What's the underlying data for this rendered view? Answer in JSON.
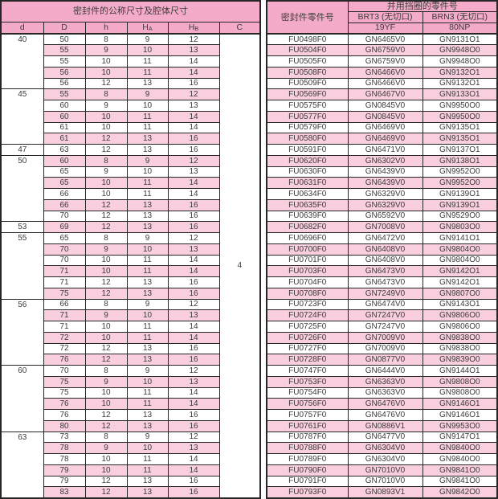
{
  "dim_table": {
    "title": "密封件的公称尺寸及腔体尺寸",
    "col_d": "d",
    "col_D": "D",
    "col_h": "h",
    "col_HA_main": "H",
    "col_HA_sub": "A",
    "col_HB_main": "H",
    "col_HB_sub": "B",
    "col_C": "C",
    "c_value": "4"
  },
  "part_table": {
    "seal_col": "密封件零件号",
    "backup_title": "并用挡圈的零件号",
    "brt3_label": "BRT3 (无切口)",
    "brt3_code": "19YF",
    "brn3_label": "BRN3 (无切口)",
    "brn3_code": "80NP"
  },
  "colors": {
    "header_pink": "#f3abc9",
    "stripe_pink": "#f9cede",
    "border_dark": "#262626",
    "text": "#3c3c3c"
  },
  "groups": [
    {
      "d": "40",
      "rows": [
        {
          "D": "50",
          "h": "8",
          "HA": "9",
          "HB": "12",
          "seal": "FU0498F0",
          "brt3": "GN6465V0",
          "brn3": "GN9131O1"
        },
        {
          "D": "55",
          "h": "9",
          "HA": "10",
          "HB": "13",
          "seal": "FU0504F0",
          "brt3": "GN6759V0",
          "brn3": "GN9948O0"
        },
        {
          "D": "55",
          "h": "10",
          "HA": "11",
          "HB": "14",
          "seal": "FU0505F0",
          "brt3": "GN6759V0",
          "brn3": "GN9948O0"
        },
        {
          "D": "56",
          "h": "10",
          "HA": "11",
          "HB": "14",
          "seal": "FU0508F0",
          "brt3": "GN6466V0",
          "brn3": "GN9132O1"
        },
        {
          "D": "56",
          "h": "12",
          "HA": "13",
          "HB": "16",
          "seal": "FU0509F0",
          "brt3": "GN6466V0",
          "brn3": "GN9132O1"
        }
      ]
    },
    {
      "d": "45",
      "rows": [
        {
          "D": "55",
          "h": "8",
          "HA": "9",
          "HB": "12",
          "seal": "FU0569F0",
          "brt3": "GN6467V0",
          "brn3": "GN9133O1"
        },
        {
          "D": "60",
          "h": "9",
          "HA": "10",
          "HB": "13",
          "seal": "FU0575F0",
          "brt3": "GN0845V0",
          "brn3": "GN9950O0"
        },
        {
          "D": "60",
          "h": "10",
          "HA": "11",
          "HB": "14",
          "seal": "FU0577F0",
          "brt3": "GN0845V0",
          "brn3": "GN9950O0"
        },
        {
          "D": "61",
          "h": "10",
          "HA": "11",
          "HB": "14",
          "seal": "FU0579F0",
          "brt3": "GN6469V0",
          "brn3": "GN9135O1"
        },
        {
          "D": "61",
          "h": "12",
          "HA": "13",
          "HB": "16",
          "seal": "FU0580F0",
          "brt3": "GN6469V0",
          "brn3": "GN9135O1"
        }
      ]
    },
    {
      "d": "47",
      "rows": [
        {
          "D": "63",
          "h": "12",
          "HA": "13",
          "HB": "16",
          "seal": "FU0591F0",
          "brt3": "GN6471V0",
          "brn3": "GN9137O1"
        }
      ]
    },
    {
      "d": "50",
      "rows": [
        {
          "D": "60",
          "h": "8",
          "HA": "9",
          "HB": "12",
          "seal": "FU0620F0",
          "brt3": "GN6302V0",
          "brn3": "GN9138O1"
        },
        {
          "D": "65",
          "h": "9",
          "HA": "10",
          "HB": "13",
          "seal": "FU0630F0",
          "brt3": "GN6439V0",
          "brn3": "GN9952O0"
        },
        {
          "D": "65",
          "h": "10",
          "HA": "11",
          "HB": "14",
          "seal": "FU0631F0",
          "brt3": "GN6439V0",
          "brn3": "GN9952O0"
        },
        {
          "D": "66",
          "h": "10",
          "HA": "11",
          "HB": "14",
          "seal": "FU0634F0",
          "brt3": "GN6329V0",
          "brn3": "GN9139O1"
        },
        {
          "D": "66",
          "h": "12",
          "HA": "13",
          "HB": "16",
          "seal": "FU0635F0",
          "brt3": "GN6329V0",
          "brn3": "GN9139O1"
        },
        {
          "D": "70",
          "h": "12",
          "HA": "13",
          "HB": "16",
          "seal": "FU0639F0",
          "brt3": "GN6592V0",
          "brn3": "GN9529O0"
        }
      ]
    },
    {
      "d": "53",
      "rows": [
        {
          "D": "69",
          "h": "12",
          "HA": "13",
          "HB": "16",
          "seal": "FU0682F0",
          "brt3": "GN7008V0",
          "brn3": "GN9803O0"
        }
      ]
    },
    {
      "d": "55",
      "rows": [
        {
          "D": "65",
          "h": "8",
          "HA": "9",
          "HB": "12",
          "seal": "FU0696F0",
          "brt3": "GN6472V0",
          "brn3": "GN9141O1"
        },
        {
          "D": "70",
          "h": "9",
          "HA": "10",
          "HB": "13",
          "seal": "FU0700F0",
          "brt3": "GN6408V0",
          "brn3": "GN9804O0"
        },
        {
          "D": "70",
          "h": "10",
          "HA": "11",
          "HB": "14",
          "seal": "FU0701F0",
          "brt3": "GN6408V0",
          "brn3": "GN9804O0"
        },
        {
          "D": "71",
          "h": "10",
          "HA": "11",
          "HB": "14",
          "seal": "FU0703F0",
          "brt3": "GN6473V0",
          "brn3": "GN9142O1"
        },
        {
          "D": "71",
          "h": "12",
          "HA": "13",
          "HB": "16",
          "seal": "FU0704F0",
          "brt3": "GN6473V0",
          "brn3": "GN9142O1"
        },
        {
          "D": "75",
          "h": "12",
          "HA": "13",
          "HB": "16",
          "seal": "FU0708F0",
          "brt3": "GN7249V0",
          "brn3": "GN9807O0"
        }
      ]
    },
    {
      "d": "56",
      "rows": [
        {
          "D": "66",
          "h": "8",
          "HA": "9",
          "HB": "12",
          "seal": "FU0723F0",
          "brt3": "GN6474V0",
          "brn3": "GN9143O1"
        },
        {
          "D": "71",
          "h": "9",
          "HA": "10",
          "HB": "13",
          "seal": "FU0724F0",
          "brt3": "GN7247V0",
          "brn3": "GN9806O0"
        },
        {
          "D": "71",
          "h": "10",
          "HA": "11",
          "HB": "14",
          "seal": "FU0725F0",
          "brt3": "GN7247V0",
          "brn3": "GN9806O0"
        },
        {
          "D": "72",
          "h": "10",
          "HA": "11",
          "HB": "14",
          "seal": "FU0726F0",
          "brt3": "GN7009V0",
          "brn3": "GN9838O0"
        },
        {
          "D": "72",
          "h": "12",
          "HA": "13",
          "HB": "16",
          "seal": "FU0727F0",
          "brt3": "GN7009V0",
          "brn3": "GN9838O0"
        },
        {
          "D": "76",
          "h": "12",
          "HA": "13",
          "HB": "16",
          "seal": "FU0728F0",
          "brt3": "GN0877V0",
          "brn3": "GN9839O0"
        }
      ]
    },
    {
      "d": "60",
      "rows": [
        {
          "D": "70",
          "h": "8",
          "HA": "9",
          "HB": "12",
          "seal": "FU0747F0",
          "brt3": "GN6444V0",
          "brn3": "GN9144O1"
        },
        {
          "D": "75",
          "h": "9",
          "HA": "10",
          "HB": "13",
          "seal": "FU0753F0",
          "brt3": "GN6363V0",
          "brn3": "GN9808O0"
        },
        {
          "D": "75",
          "h": "10",
          "HA": "11",
          "HB": "14",
          "seal": "FU0754F0",
          "brt3": "GN6363V0",
          "brn3": "GN9808O0"
        },
        {
          "D": "76",
          "h": "10",
          "HA": "11",
          "HB": "14",
          "seal": "FU0756F0",
          "brt3": "GN6476V0",
          "brn3": "GN9146O1"
        },
        {
          "D": "76",
          "h": "12",
          "HA": "13",
          "HB": "16",
          "seal": "FU0757F0",
          "brt3": "GN6476V0",
          "brn3": "GN9146O1"
        },
        {
          "D": "80",
          "h": "12",
          "HA": "13",
          "HB": "16",
          "seal": "FU0761F0",
          "brt3": "GN0886V1",
          "brn3": "GN9953O0"
        }
      ]
    },
    {
      "d": "63",
      "rows": [
        {
          "D": "73",
          "h": "8",
          "HA": "9",
          "HB": "12",
          "seal": "FU0787F0",
          "brt3": "GN6477V0",
          "brn3": "GN9147O1"
        },
        {
          "D": "78",
          "h": "9",
          "HA": "10",
          "HB": "13",
          "seal": "FU0788F0",
          "brt3": "GN6304V0",
          "brn3": "GN9840O0"
        },
        {
          "D": "78",
          "h": "10",
          "HA": "11",
          "HB": "14",
          "seal": "FU0789F0",
          "brt3": "GN6304V0",
          "brn3": "GN9840O0"
        },
        {
          "D": "79",
          "h": "10",
          "HA": "11",
          "HB": "14",
          "seal": "FU0790F0",
          "brt3": "GN7010V0",
          "brn3": "GN9841O0"
        },
        {
          "D": "79",
          "h": "12",
          "HA": "13",
          "HB": "16",
          "seal": "FU0791F0",
          "brt3": "GN7010V0",
          "brn3": "GN9841O0"
        },
        {
          "D": "83",
          "h": "12",
          "HA": "13",
          "HB": "16",
          "seal": "FU0793F0",
          "brt3": "GN0893V1",
          "brn3": "GN9842O0"
        }
      ]
    }
  ]
}
